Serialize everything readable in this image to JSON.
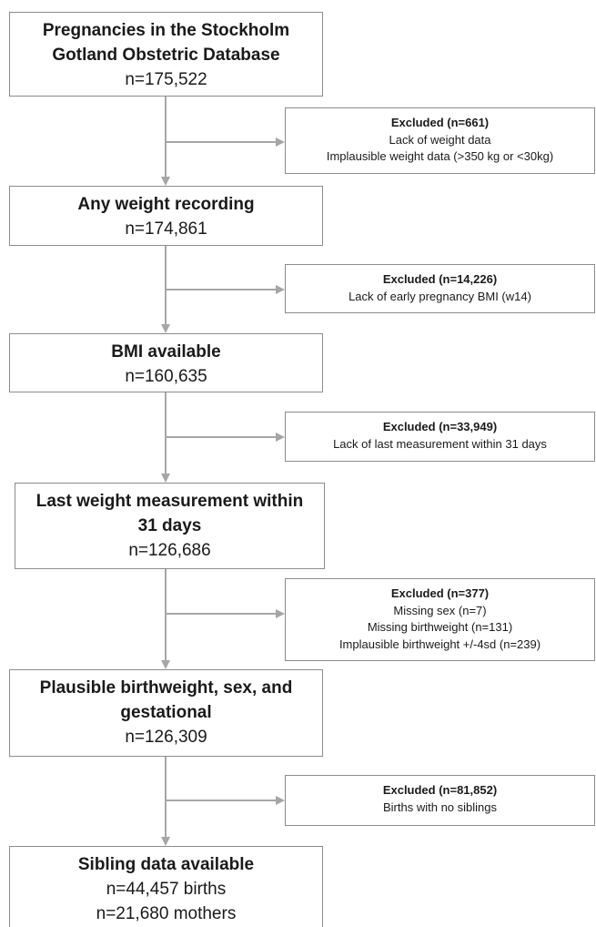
{
  "steps": [
    {
      "title_lines": [
        "Pregnancies in the Stockholm",
        "Gotland Obstetric Database"
      ],
      "counts": [
        "n=175,522"
      ]
    },
    {
      "title_lines": [
        "Any weight recording"
      ],
      "counts": [
        "n=174,861"
      ]
    },
    {
      "title_lines": [
        "BMI available"
      ],
      "counts": [
        "n=160,635"
      ]
    },
    {
      "title_lines": [
        "Last weight measurement within",
        "31 days"
      ],
      "counts": [
        "n=126,686"
      ]
    },
    {
      "title_lines": [
        "Plausible birthweight, sex, and",
        "gestational"
      ],
      "counts": [
        "n=126,309"
      ]
    },
    {
      "title_lines": [
        "Sibling data available"
      ],
      "counts": [
        "n=44,457 births",
        "n=21,680 mothers"
      ]
    }
  ],
  "exclusions": [
    {
      "title": "Excluded (n=661)",
      "reasons": [
        "Lack of weight data",
        "Implausible weight data (>350 kg or <30kg)"
      ]
    },
    {
      "title": "Excluded (n=14,226)",
      "reasons": [
        "Lack of early pregnancy BMI (w14)"
      ]
    },
    {
      "title": "Excluded (n=33,949)",
      "reasons": [
        "Lack of last measurement within 31 days"
      ]
    },
    {
      "title": "Excluded (n=377)",
      "reasons": [
        "Missing sex (n=7)",
        "Missing birthweight (n=131)",
        "Implausible birthweight +/-4sd (n=239)"
      ]
    },
    {
      "title": "Excluded (n=81,852)",
      "reasons": [
        "Births with no siblings"
      ]
    }
  ],
  "colors": {
    "border": "#8c8c8c",
    "arrow": "#a6a6a6",
    "text": "#1a1a1a"
  }
}
